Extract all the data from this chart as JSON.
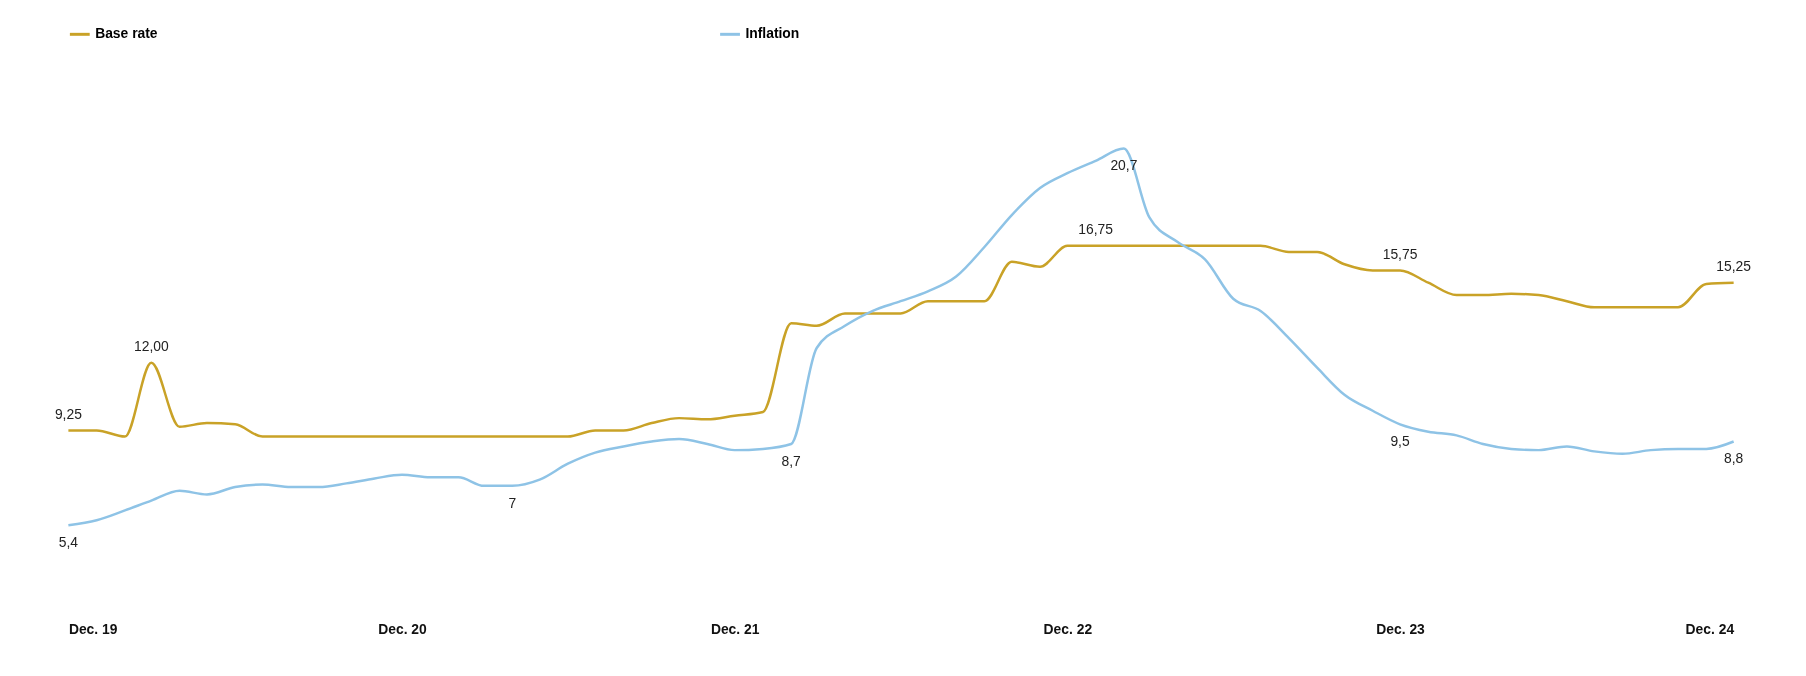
{
  "chart_data": {
    "type": "line",
    "x": [
      "2019-12",
      "2020-01",
      "2020-02",
      "2020-03",
      "2020-04",
      "2020-05",
      "2020-06",
      "2020-07",
      "2020-08",
      "2020-09",
      "2020-10",
      "2020-11",
      "2020-12",
      "2021-01",
      "2021-02",
      "2021-03",
      "2021-04",
      "2021-05",
      "2021-06",
      "2021-07",
      "2021-08",
      "2021-09",
      "2021-10",
      "2021-11",
      "2021-12",
      "2022-01",
      "2022-02",
      "2022-03",
      "2022-04",
      "2022-05",
      "2022-06",
      "2022-07",
      "2022-08",
      "2022-09",
      "2022-10",
      "2022-11",
      "2022-12",
      "2023-01",
      "2023-02",
      "2023-03",
      "2023-04",
      "2023-05",
      "2023-06",
      "2023-07",
      "2023-08",
      "2023-09",
      "2023-10",
      "2023-11",
      "2023-12",
      "2024-01",
      "2024-02",
      "2024-03",
      "2024-04",
      "2024-05",
      "2024-06",
      "2024-07",
      "2024-08",
      "2024-09",
      "2024-10",
      "2024-11",
      "2024-12"
    ],
    "series": [
      {
        "name": "Base rate",
        "color": "#c9a227",
        "values": [
          9.25,
          9.25,
          9.0,
          12.0,
          9.4,
          9.55,
          9.5,
          9.0,
          9.0,
          9.0,
          9.0,
          9.0,
          9.0,
          9.0,
          9.0,
          9.0,
          9.0,
          9.0,
          9.0,
          9.25,
          9.25,
          9.55,
          9.75,
          9.7,
          9.85,
          10.0,
          13.6,
          13.5,
          14.0,
          14.0,
          14.0,
          14.5,
          14.5,
          14.5,
          16.1,
          15.9,
          16.75,
          16.75,
          16.75,
          16.75,
          16.75,
          16.75,
          16.75,
          16.75,
          16.5,
          16.5,
          16.0,
          15.75,
          15.75,
          15.25,
          14.75,
          14.75,
          14.8,
          14.75,
          14.5,
          14.25,
          14.25,
          14.25,
          14.25,
          15.2,
          15.25
        ],
        "value_labels": [
          "9,25",
          null,
          null,
          "12,00",
          null,
          null,
          null,
          null,
          null,
          null,
          null,
          null,
          null,
          null,
          null,
          null,
          null,
          null,
          null,
          null,
          null,
          null,
          null,
          null,
          null,
          null,
          null,
          null,
          null,
          null,
          null,
          null,
          null,
          null,
          null,
          null,
          null,
          "16,75",
          null,
          null,
          null,
          null,
          null,
          null,
          null,
          null,
          null,
          null,
          "15,75",
          null,
          null,
          null,
          null,
          null,
          null,
          null,
          null,
          null,
          null,
          null,
          "15,25"
        ]
      },
      {
        "name": "Inflation",
        "color": "#8ec3e6",
        "values": [
          5.4,
          5.6,
          6.0,
          6.4,
          6.8,
          6.65,
          6.95,
          7.05,
          6.95,
          6.95,
          7.1,
          7.3,
          7.45,
          7.35,
          7.35,
          7.0,
          7.0,
          7.25,
          7.9,
          8.35,
          8.6,
          8.8,
          8.9,
          8.7,
          8.45,
          8.5,
          8.7,
          12.6,
          13.5,
          14.1,
          14.5,
          14.9,
          15.5,
          16.7,
          18.0,
          19.1,
          19.7,
          20.2,
          20.7,
          17.9,
          16.9,
          16.2,
          14.6,
          14.1,
          13.0,
          11.8,
          10.7,
          10.05,
          9.5,
          9.2,
          9.05,
          8.7,
          8.5,
          8.45,
          8.6,
          8.4,
          8.3,
          8.45,
          8.5,
          8.5,
          8.8
        ],
        "value_labels": [
          "5,4",
          null,
          null,
          null,
          null,
          null,
          null,
          null,
          null,
          null,
          null,
          null,
          null,
          null,
          null,
          null,
          "7",
          null,
          null,
          null,
          null,
          null,
          null,
          null,
          null,
          null,
          "8,7",
          null,
          null,
          null,
          null,
          null,
          null,
          null,
          null,
          null,
          null,
          null,
          "20,7",
          null,
          null,
          null,
          null,
          null,
          null,
          null,
          null,
          null,
          "9,5",
          null,
          null,
          null,
          null,
          null,
          null,
          null,
          null,
          null,
          null,
          null,
          "8,8"
        ]
      }
    ],
    "xlim": [
      "2019-12",
      "2024-12"
    ],
    "xticks": [
      {
        "value": "2019-12",
        "label": "Dec. 19"
      },
      {
        "value": "2020-12",
        "label": "Dec. 20"
      },
      {
        "value": "2021-12",
        "label": "Dec. 21"
      },
      {
        "value": "2022-12",
        "label": "Dec. 22"
      },
      {
        "value": "2023-12",
        "label": "Dec. 23"
      },
      {
        "value": "2024-12",
        "label": "Dec. 24"
      }
    ],
    "tick_labels": "x",
    "legend": "top",
    "grid": false,
    "marker": "none",
    "line_style": "solid"
  }
}
